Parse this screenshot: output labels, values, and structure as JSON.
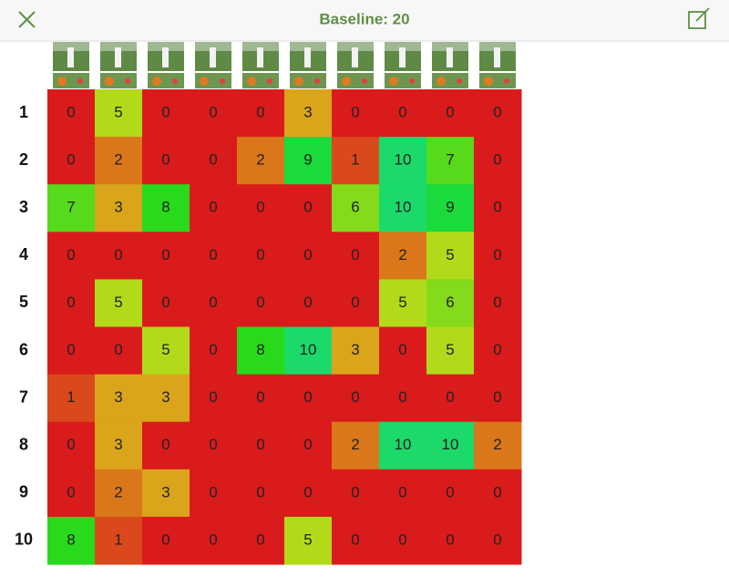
{
  "header": {
    "title": "Baseline: 20"
  },
  "grid": {
    "row_labels": [
      1,
      2,
      3,
      4,
      5,
      6,
      7,
      8,
      9,
      10
    ],
    "values": [
      [
        0,
        5,
        0,
        0,
        0,
        3,
        0,
        0,
        0,
        0
      ],
      [
        0,
        2,
        0,
        0,
        2,
        9,
        1,
        10,
        7,
        0
      ],
      [
        7,
        3,
        8,
        0,
        0,
        0,
        6,
        10,
        9,
        0
      ],
      [
        0,
        0,
        0,
        0,
        0,
        0,
        0,
        2,
        5,
        0
      ],
      [
        0,
        5,
        0,
        0,
        0,
        0,
        0,
        5,
        6,
        0
      ],
      [
        0,
        0,
        5,
        0,
        8,
        10,
        3,
        0,
        5,
        0
      ],
      [
        1,
        3,
        3,
        0,
        0,
        0,
        0,
        0,
        0,
        0
      ],
      [
        0,
        3,
        0,
        0,
        0,
        0,
        2,
        10,
        10,
        2
      ],
      [
        0,
        2,
        3,
        0,
        0,
        0,
        0,
        0,
        0,
        0
      ],
      [
        8,
        1,
        0,
        0,
        0,
        5,
        0,
        0,
        0,
        0
      ]
    ]
  }
}
